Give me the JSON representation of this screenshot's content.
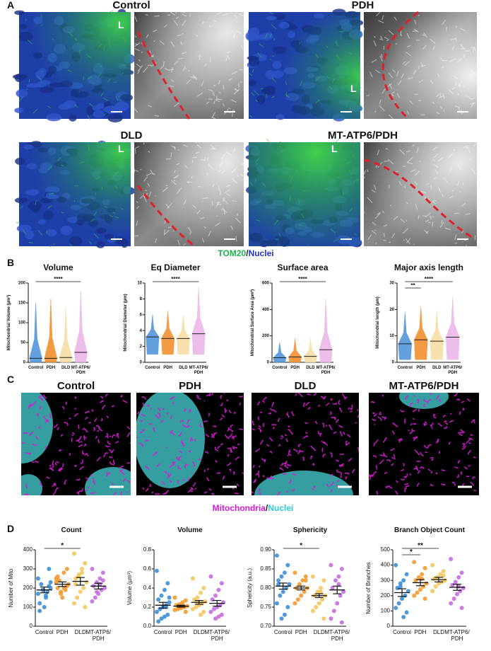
{
  "panels": {
    "a": {
      "label": "A",
      "images": [
        {
          "title": "Control",
          "marker": "L"
        },
        {
          "title": "PDH",
          "marker": "L"
        },
        {
          "title": "DLD",
          "marker": "L"
        },
        {
          "title": "MT-ATP6/PDH",
          "marker": "L"
        }
      ],
      "legend": [
        {
          "text": "TOM20",
          "color": "#1db34a"
        },
        {
          "text": "/",
          "color": "#1a1a1a"
        },
        {
          "text": "Nuclei",
          "color": "#2233cc"
        }
      ]
    },
    "b": {
      "label": "B"
    },
    "c": {
      "label": "C",
      "titles": [
        "Control",
        "PDH",
        "DLD",
        "MT-ATP6/PDH"
      ],
      "legend": [
        {
          "text": "Mitochondria",
          "color": "#d81ad8"
        },
        {
          "text": "/",
          "color": "#1a1a1a"
        },
        {
          "text": "Nuclei",
          "color": "#2ec8d0"
        }
      ]
    },
    "d": {
      "label": "D"
    }
  },
  "chart_data": [
    {
      "type": "strip",
      "title": "Volume",
      "y_label": "Mitochondrial Volume (µm³)",
      "categories": [
        "Control",
        "PDH",
        "DLD",
        "MT-ATP6/PDH"
      ],
      "groups": [
        {
          "color": "#4a90d9",
          "min": 0,
          "max": 150,
          "mean": 10
        },
        {
          "color": "#f08a24",
          "min": 0,
          "max": 160,
          "mean": 10
        },
        {
          "color": "#f5dca0",
          "min": 0,
          "max": 140,
          "mean": 12
        },
        {
          "color": "#e9b3e6",
          "min": 0,
          "max": 180,
          "mean": 25
        }
      ],
      "ylim": [
        0,
        200
      ],
      "yticks": [
        0,
        50,
        100,
        150,
        200
      ],
      "significance": [
        {
          "between": [
            "Control",
            "MT-ATP6/PDH"
          ],
          "label": "****"
        }
      ]
    },
    {
      "type": "strip",
      "title": "Eq Diameter",
      "y_label": "Mitochondrial Diameter (µm)",
      "categories": [
        "Control",
        "PDH",
        "DLD",
        "MT-ATP6/PDH"
      ],
      "groups": [
        {
          "color": "#4a90d9",
          "min": 1,
          "max": 6,
          "mean": 3.2
        },
        {
          "color": "#f08a24",
          "min": 1,
          "max": 6.5,
          "mean": 3
        },
        {
          "color": "#f5dca0",
          "min": 1,
          "max": 6,
          "mean": 3
        },
        {
          "color": "#e9b3e6",
          "min": 1,
          "max": 9.5,
          "mean": 3.6
        }
      ],
      "ylim": [
        0,
        10
      ],
      "yticks": [
        0,
        2,
        4,
        6,
        8,
        10
      ],
      "significance": [
        {
          "between": [
            "Control",
            "MT-ATP6/PDH"
          ],
          "label": "****"
        }
      ]
    },
    {
      "type": "strip",
      "title": "Surface area",
      "y_label": "Mitochondrial Surface Area (µm²)",
      "categories": [
        "Control",
        "PDH",
        "DLD",
        "MT-ATP6/PDH"
      ],
      "groups": [
        {
          "color": "#4a90d9",
          "min": 0,
          "max": 150,
          "mean": 35
        },
        {
          "color": "#f08a24",
          "min": 0,
          "max": 180,
          "mean": 40
        },
        {
          "color": "#f5dca0",
          "min": 0,
          "max": 180,
          "mean": 45
        },
        {
          "color": "#e9b3e6",
          "min": 0,
          "max": 480,
          "mean": 95
        }
      ],
      "ylim": [
        0,
        600
      ],
      "yticks": [
        0,
        200,
        400,
        600
      ],
      "significance": [
        {
          "between": [
            "Control",
            "MT-ATP6/PDH"
          ],
          "label": "****"
        }
      ]
    },
    {
      "type": "strip",
      "title": "Major axis length",
      "y_label": "Mitochondrial length (µm)",
      "categories": [
        "Control",
        "PDH",
        "DLD",
        "MT-ATP6/PDH"
      ],
      "groups": [
        {
          "color": "#4a90d9",
          "min": 1,
          "max": 19,
          "mean": 7
        },
        {
          "color": "#f08a24",
          "min": 1,
          "max": 21,
          "mean": 8.5
        },
        {
          "color": "#f5dca0",
          "min": 1,
          "max": 20,
          "mean": 8
        },
        {
          "color": "#e9b3e6",
          "min": 1,
          "max": 25,
          "mean": 9.5
        }
      ],
      "ylim": [
        0,
        30
      ],
      "yticks": [
        0,
        10,
        20,
        30
      ],
      "significance": [
        {
          "between": [
            "Control",
            "MT-ATP6/PDH"
          ],
          "label": "****"
        },
        {
          "between": [
            "Control",
            "PDH"
          ],
          "label": "**"
        }
      ]
    },
    {
      "type": "dotplot",
      "title": "Count",
      "y_label": "Number of Mito",
      "categories": [
        "Control",
        "PDH",
        "DLD",
        "MT-ATP6/PDH"
      ],
      "groups": [
        {
          "color": "#3d8fd6",
          "values": [
            250,
            300,
            150,
            190,
            120,
            200,
            180,
            100,
            220,
            170,
            210,
            160,
            190,
            80,
            230
          ],
          "mean": 190,
          "sem": 15
        },
        {
          "color": "#f39a2e",
          "values": [
            250,
            300,
            200,
            180,
            260,
            220,
            190,
            150,
            240,
            230,
            210,
            280,
            170,
            200
          ],
          "mean": 220,
          "sem": 12
        },
        {
          "color": "#f4c85c",
          "values": [
            380,
            330,
            300,
            270,
            250,
            230,
            200,
            180,
            150,
            120,
            100,
            280,
            260,
            220
          ],
          "mean": 235,
          "sem": 20
        },
        {
          "color": "#c46ee0",
          "values": [
            300,
            280,
            250,
            230,
            210,
            200,
            190,
            170,
            150,
            130,
            240,
            220,
            180
          ],
          "mean": 210,
          "sem": 15
        }
      ],
      "ylim": [
        0,
        400
      ],
      "yticks": [
        0,
        100,
        200,
        300,
        400
      ],
      "significance": [
        {
          "between": [
            "Control",
            "DLD"
          ],
          "label": "*"
        }
      ]
    },
    {
      "type": "dotplot",
      "title": "Volume",
      "y_label": "Volume (µm³)",
      "categories": [
        "Control",
        "PDH",
        "DLD",
        "MT-ATP6/PDH"
      ],
      "groups": [
        {
          "color": "#3d8fd6",
          "values": [
            0.58,
            0.45,
            0.38,
            0.32,
            0.28,
            0.25,
            0.22,
            0.2,
            0.18,
            0.15,
            0.12,
            0.1,
            0.08,
            0.05,
            0.3,
            0.2
          ],
          "mean": 0.22,
          "sem": 0.03
        },
        {
          "color": "#f39a2e",
          "values": [
            0.3,
            0.27,
            0.25,
            0.23,
            0.22,
            0.21,
            0.2,
            0.19,
            0.18,
            0.17,
            0.15,
            0.22,
            0.2
          ],
          "mean": 0.21,
          "sem": 0.01
        },
        {
          "color": "#f4c85c",
          "values": [
            0.5,
            0.4,
            0.35,
            0.3,
            0.28,
            0.26,
            0.24,
            0.22,
            0.2,
            0.18,
            0.15,
            0.12,
            0.25
          ],
          "mean": 0.25,
          "sem": 0.02
        },
        {
          "color": "#c46ee0",
          "values": [
            0.52,
            0.45,
            0.38,
            0.32,
            0.28,
            0.25,
            0.22,
            0.2,
            0.18,
            0.15,
            0.12,
            0.1,
            0.08
          ],
          "mean": 0.24,
          "sem": 0.03
        }
      ],
      "ylim": [
        0,
        0.8
      ],
      "yticks": [
        {
          "value": 0,
          "label": "0.0"
        },
        0.2,
        0.4,
        0.6,
        0.8
      ],
      "significance": []
    },
    {
      "type": "dotplot",
      "title": "Sphericity",
      "y_label": "Sphericity (a.u.)",
      "categories": [
        "Control",
        "PDH",
        "DLD",
        "MT-ATP6/PDH"
      ],
      "groups": [
        {
          "color": "#3d8fd6",
          "values": [
            0.885,
            0.86,
            0.84,
            0.83,
            0.82,
            0.81,
            0.8,
            0.79,
            0.78,
            0.76,
            0.75,
            0.73,
            0.72,
            0.81
          ],
          "mean": 0.805,
          "sem": 0.008
        },
        {
          "color": "#f39a2e",
          "values": [
            0.84,
            0.83,
            0.82,
            0.81,
            0.8,
            0.8,
            0.79,
            0.78,
            0.77,
            0.76,
            0.82
          ],
          "mean": 0.8,
          "sem": 0.005
        },
        {
          "color": "#f4c85c",
          "values": [
            0.83,
            0.82,
            0.8,
            0.79,
            0.78,
            0.78,
            0.77,
            0.76,
            0.75,
            0.74,
            0.72,
            0.79
          ],
          "mean": 0.78,
          "sem": 0.005
        },
        {
          "color": "#c46ee0",
          "values": [
            0.86,
            0.85,
            0.83,
            0.82,
            0.8,
            0.79,
            0.78,
            0.76,
            0.74,
            0.72,
            0.71,
            0.81
          ],
          "mean": 0.795,
          "sem": 0.01
        }
      ],
      "ylim": [
        0.7,
        0.9
      ],
      "yticks": [
        {
          "value": 0.7,
          "label": "0.70"
        },
        0.75,
        {
          "value": 0.8,
          "label": "0.80"
        },
        0.85,
        {
          "value": 0.9,
          "label": "0.90"
        }
      ],
      "significance": [
        {
          "between": [
            "Control",
            "DLD"
          ],
          "label": "*"
        }
      ]
    },
    {
      "type": "dotplot",
      "title": "Branch Object Count",
      "y_label": "Number of Branches",
      "categories": [
        "Control",
        "PDH",
        "DLD",
        "MT-ATP6/PDH"
      ],
      "groups": [
        {
          "color": "#3d8fd6",
          "values": [
            400,
            340,
            300,
            280,
            250,
            230,
            200,
            180,
            150,
            120,
            90,
            60,
            260
          ],
          "mean": 220,
          "sem": 25
        },
        {
          "color": "#f39a2e",
          "values": [
            420,
            380,
            340,
            320,
            300,
            280,
            260,
            240,
            220,
            200,
            180,
            310
          ],
          "mean": 285,
          "sem": 20
        },
        {
          "color": "#f4c85c",
          "values": [
            400,
            360,
            340,
            320,
            310,
            300,
            290,
            280,
            260,
            230,
            330
          ],
          "mean": 305,
          "sem": 15
        },
        {
          "color": "#c46ee0",
          "values": [
            440,
            350,
            320,
            290,
            270,
            250,
            230,
            210,
            180,
            150,
            120,
            260
          ],
          "mean": 255,
          "sem": 20
        }
      ],
      "ylim": [
        0,
        500
      ],
      "yticks": [
        0,
        100,
        200,
        300,
        400,
        500
      ],
      "significance": [
        {
          "between": [
            "Control",
            "DLD"
          ],
          "label": "**"
        },
        {
          "between": [
            "Control",
            "PDH"
          ],
          "label": "*"
        }
      ]
    }
  ]
}
